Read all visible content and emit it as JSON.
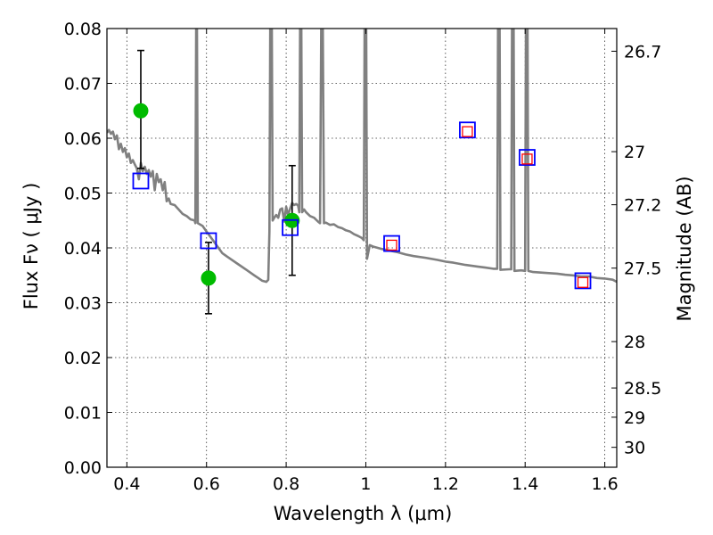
{
  "chart_data": {
    "type": "scatter",
    "title": "",
    "xlabel": "Wavelength  λ (μm)",
    "ylabel": "Flux  Fν ( μJy )",
    "y2label": "Magnitude (AB)",
    "xlim": [
      0.35,
      1.63
    ],
    "ylim": [
      0.0,
      0.08
    ],
    "grid": true,
    "x_ticks": [
      0.4,
      0.6,
      0.8,
      1.0,
      1.2,
      1.4,
      1.6
    ],
    "x_tick_labels": [
      "0.4",
      "0.6",
      "0.8",
      "1",
      "1.2",
      "1.4",
      "1.6"
    ],
    "y_ticks": [
      0.0,
      0.01,
      0.02,
      0.03,
      0.04,
      0.05,
      0.06,
      0.07,
      0.08
    ],
    "y_tick_labels": [
      "0.00",
      "0.01",
      "0.02",
      "0.03",
      "0.04",
      "0.05",
      "0.06",
      "0.07",
      "0.08"
    ],
    "y2_ticks": [
      {
        "label": "26.7",
        "value": 26.7
      },
      {
        "label": "27",
        "value": 27.0
      },
      {
        "label": "27.2",
        "value": 27.2
      },
      {
        "label": "27.5",
        "value": 27.5
      },
      {
        "label": "28",
        "value": 28.0
      },
      {
        "label": "28.5",
        "value": 28.5
      },
      {
        "label": "29",
        "value": 29.0
      },
      {
        "label": "30",
        "value": 30.0
      }
    ],
    "series": [
      {
        "kind": "line",
        "color": "#808080",
        "points": [
          [
            0.35,
            0.061
          ],
          [
            0.355,
            0.0615
          ],
          [
            0.36,
            0.0608
          ],
          [
            0.365,
            0.0612
          ],
          [
            0.37,
            0.0598
          ],
          [
            0.375,
            0.0605
          ],
          [
            0.38,
            0.058
          ],
          [
            0.385,
            0.059
          ],
          [
            0.39,
            0.0575
          ],
          [
            0.395,
            0.0582
          ],
          [
            0.4,
            0.0565
          ],
          [
            0.405,
            0.0572
          ],
          [
            0.41,
            0.0555
          ],
          [
            0.415,
            0.056
          ],
          [
            0.42,
            0.0552
          ],
          [
            0.425,
            0.0545
          ],
          [
            0.43,
            0.0525
          ],
          [
            0.435,
            0.0555
          ],
          [
            0.44,
            0.054
          ],
          [
            0.445,
            0.0548
          ],
          [
            0.45,
            0.0535
          ],
          [
            0.455,
            0.0542
          ],
          [
            0.46,
            0.053
          ],
          [
            0.465,
            0.054
          ],
          [
            0.47,
            0.0505
          ],
          [
            0.475,
            0.0535
          ],
          [
            0.48,
            0.052
          ],
          [
            0.485,
            0.0525
          ],
          [
            0.49,
            0.0505
          ],
          [
            0.495,
            0.052
          ],
          [
            0.5,
            0.0485
          ],
          [
            0.505,
            0.049
          ],
          [
            0.51,
            0.048
          ],
          [
            0.52,
            0.0478
          ],
          [
            0.53,
            0.047
          ],
          [
            0.54,
            0.0462
          ],
          [
            0.55,
            0.0458
          ],
          [
            0.56,
            0.0452
          ],
          [
            0.57,
            0.045
          ],
          [
            0.572,
            0.0445
          ],
          [
            0.574,
            0.08
          ],
          [
            0.576,
            0.08
          ],
          [
            0.578,
            0.0445
          ],
          [
            0.59,
            0.044
          ],
          [
            0.6,
            0.043
          ],
          [
            0.61,
            0.042
          ],
          [
            0.62,
            0.041
          ],
          [
            0.63,
            0.04
          ],
          [
            0.64,
            0.039
          ],
          [
            0.66,
            0.038
          ],
          [
            0.68,
            0.037
          ],
          [
            0.7,
            0.036
          ],
          [
            0.72,
            0.035
          ],
          [
            0.73,
            0.0345
          ],
          [
            0.74,
            0.034
          ],
          [
            0.75,
            0.0338
          ],
          [
            0.755,
            0.0342
          ],
          [
            0.758,
            0.043
          ],
          [
            0.76,
            0.08
          ],
          [
            0.764,
            0.08
          ],
          [
            0.766,
            0.045
          ],
          [
            0.77,
            0.0455
          ],
          [
            0.775,
            0.046
          ],
          [
            0.78,
            0.0455
          ],
          [
            0.785,
            0.047
          ],
          [
            0.79,
            0.0472
          ],
          [
            0.795,
            0.0448
          ],
          [
            0.8,
            0.0475
          ],
          [
            0.805,
            0.046
          ],
          [
            0.81,
            0.0472
          ],
          [
            0.815,
            0.0482
          ],
          [
            0.82,
            0.0478
          ],
          [
            0.825,
            0.048
          ],
          [
            0.83,
            0.0477
          ],
          [
            0.833,
            0.0465
          ],
          [
            0.835,
            0.08
          ],
          [
            0.838,
            0.08
          ],
          [
            0.84,
            0.0465
          ],
          [
            0.845,
            0.047
          ],
          [
            0.85,
            0.0465
          ],
          [
            0.86,
            0.0458
          ],
          [
            0.87,
            0.0455
          ],
          [
            0.88,
            0.0448
          ],
          [
            0.885,
            0.0445
          ],
          [
            0.888,
            0.08
          ],
          [
            0.892,
            0.08
          ],
          [
            0.895,
            0.0445
          ],
          [
            0.9,
            0.0446
          ],
          [
            0.91,
            0.0442
          ],
          [
            0.92,
            0.0443
          ],
          [
            0.93,
            0.0438
          ],
          [
            0.94,
            0.0436
          ],
          [
            0.95,
            0.0432
          ],
          [
            0.96,
            0.043
          ],
          [
            0.97,
            0.0425
          ],
          [
            0.98,
            0.0422
          ],
          [
            0.99,
            0.0418
          ],
          [
            0.995,
            0.0414
          ],
          [
            0.997,
            0.08
          ],
          [
            1.001,
            0.08
          ],
          [
            1.003,
            0.038
          ],
          [
            1.01,
            0.0405
          ],
          [
            1.02,
            0.0402
          ],
          [
            1.03,
            0.04
          ],
          [
            1.04,
            0.0398
          ],
          [
            1.06,
            0.0395
          ],
          [
            1.08,
            0.0392
          ],
          [
            1.1,
            0.0388
          ],
          [
            1.12,
            0.0385
          ],
          [
            1.15,
            0.0382
          ],
          [
            1.18,
            0.0378
          ],
          [
            1.2,
            0.0375
          ],
          [
            1.22,
            0.0373
          ],
          [
            1.25,
            0.0369
          ],
          [
            1.28,
            0.0366
          ],
          [
            1.3,
            0.0364
          ],
          [
            1.32,
            0.0362
          ],
          [
            1.33,
            0.0362
          ],
          [
            1.332,
            0.08
          ],
          [
            1.336,
            0.08
          ],
          [
            1.338,
            0.036
          ],
          [
            1.36,
            0.0361
          ],
          [
            1.365,
            0.0361
          ],
          [
            1.367,
            0.08
          ],
          [
            1.371,
            0.08
          ],
          [
            1.373,
            0.0358
          ],
          [
            1.39,
            0.0359
          ],
          [
            1.4,
            0.0358
          ],
          [
            1.402,
            0.08
          ],
          [
            1.406,
            0.08
          ],
          [
            1.408,
            0.0358
          ],
          [
            1.42,
            0.0356
          ],
          [
            1.44,
            0.0355
          ],
          [
            1.46,
            0.0354
          ],
          [
            1.48,
            0.0353
          ],
          [
            1.5,
            0.0351
          ],
          [
            1.52,
            0.035
          ],
          [
            1.54,
            0.0348
          ],
          [
            1.56,
            0.0348
          ],
          [
            1.58,
            0.0345
          ],
          [
            1.6,
            0.0344
          ],
          [
            1.62,
            0.0342
          ],
          [
            1.63,
            0.0338
          ]
        ]
      },
      {
        "kind": "filled-circles-errorbars",
        "color": "#00bb00",
        "points": [
          {
            "x": 0.435,
            "y": 0.065,
            "err_low": 0.0545,
            "err_high": 0.076
          },
          {
            "x": 0.605,
            "y": 0.0345,
            "err_low": 0.028,
            "err_high": 0.041
          },
          {
            "x": 0.815,
            "y": 0.045,
            "err_low": 0.035,
            "err_high": 0.055
          }
        ]
      },
      {
        "kind": "open-squares",
        "color": "#0000ff",
        "points": [
          [
            0.435,
            0.0522
          ],
          [
            0.605,
            0.0413
          ],
          [
            0.81,
            0.0437
          ],
          [
            1.065,
            0.0408
          ],
          [
            1.255,
            0.0615
          ],
          [
            1.405,
            0.0565
          ],
          [
            1.545,
            0.034
          ]
        ]
      },
      {
        "kind": "small-open-squares",
        "color": "#ff0000",
        "points": [
          [
            1.065,
            0.0405
          ],
          [
            1.255,
            0.0612
          ],
          [
            1.405,
            0.0562
          ],
          [
            1.545,
            0.0337
          ]
        ]
      }
    ]
  }
}
